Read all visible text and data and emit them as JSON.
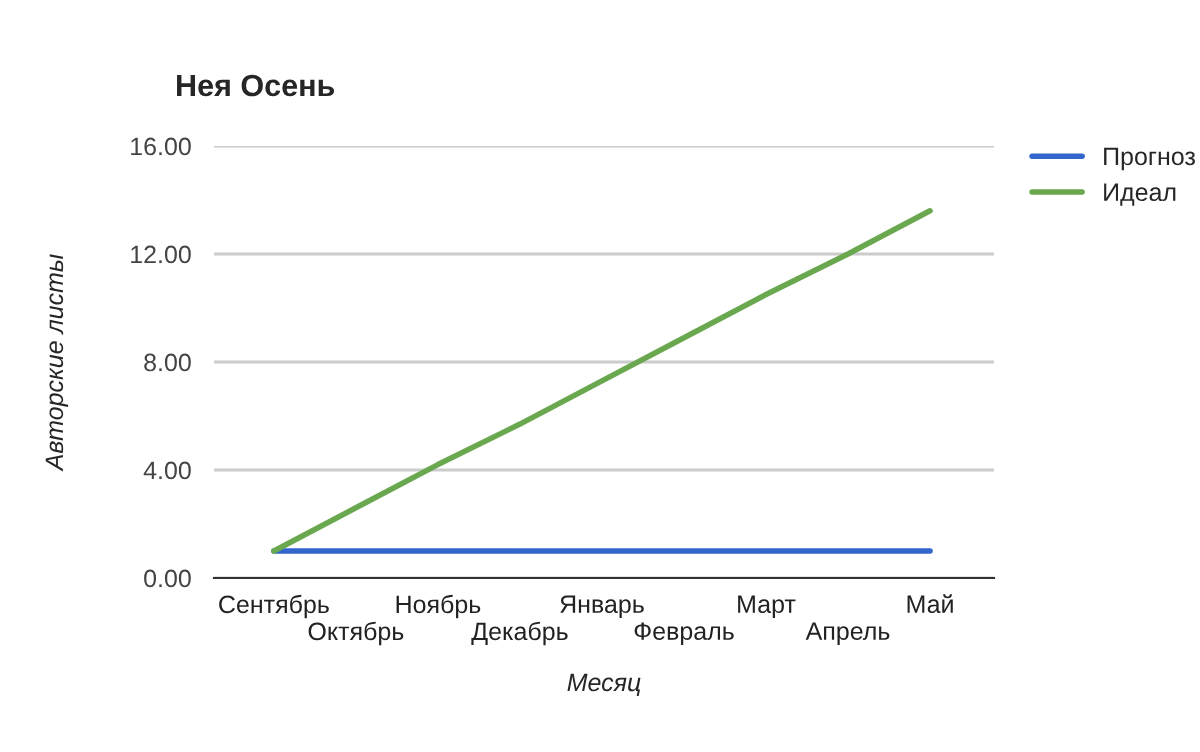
{
  "chart_data": {
    "type": "line",
    "title": "Нея Осень",
    "xlabel": "Месяц",
    "ylabel": "Авторские листы",
    "categories": [
      "Сентябрь",
      "Октябрь",
      "Ноябрь",
      "Декабрь",
      "Январь",
      "Февраль",
      "Март",
      "Апрель",
      "Май"
    ],
    "series": [
      {
        "name": "Прогноз",
        "color": "#3366cc",
        "values": [
          1,
          1,
          1,
          1,
          1,
          1,
          1,
          1,
          1
        ]
      },
      {
        "name": "Идеал",
        "color": "#6aa84f",
        "values": [
          1,
          2.6,
          4.2,
          5.7,
          7.3,
          8.9,
          10.5,
          12,
          13.6
        ]
      }
    ],
    "ylim": [
      0,
      16
    ],
    "yticks": [
      {
        "value": 0,
        "label": "0.00"
      },
      {
        "value": 4,
        "label": "4.00"
      },
      {
        "value": 8,
        "label": "8.00"
      },
      {
        "value": 12,
        "label": "12.00"
      },
      {
        "value": 16,
        "label": "16.00"
      }
    ],
    "grid": "y",
    "legend": "top right",
    "marker": "none",
    "line_style": "solid"
  }
}
